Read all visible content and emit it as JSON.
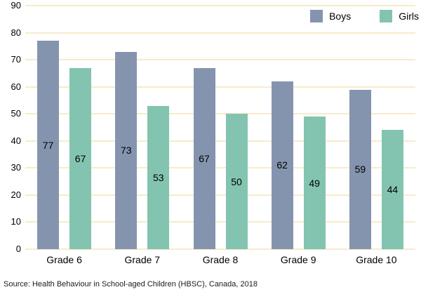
{
  "chart_data": {
    "type": "bar",
    "title": "",
    "categories": [
      "Grade 6",
      "Grade 7",
      "Grade 8",
      "Grade 9",
      "Grade 10"
    ],
    "series": [
      {
        "name": "Boys",
        "color": "#8594ae",
        "values": [
          77,
          73,
          67,
          62,
          59
        ]
      },
      {
        "name": "Girls",
        "color": "#82c4b0",
        "values": [
          67,
          53,
          50,
          49,
          44
        ]
      }
    ],
    "xlabel": "",
    "ylabel": "",
    "ylim": [
      0,
      90
    ],
    "yticks": [
      0,
      10,
      20,
      30,
      40,
      50,
      60,
      70,
      80,
      90
    ],
    "grid": true,
    "gridline_color": "#f6ecca",
    "legend_position": "top-right",
    "bar_labels": true,
    "bar_label_position": "inside-center"
  },
  "source_note": "Source: Health Behaviour in School-aged Children (HBSC), Canada, 2018"
}
